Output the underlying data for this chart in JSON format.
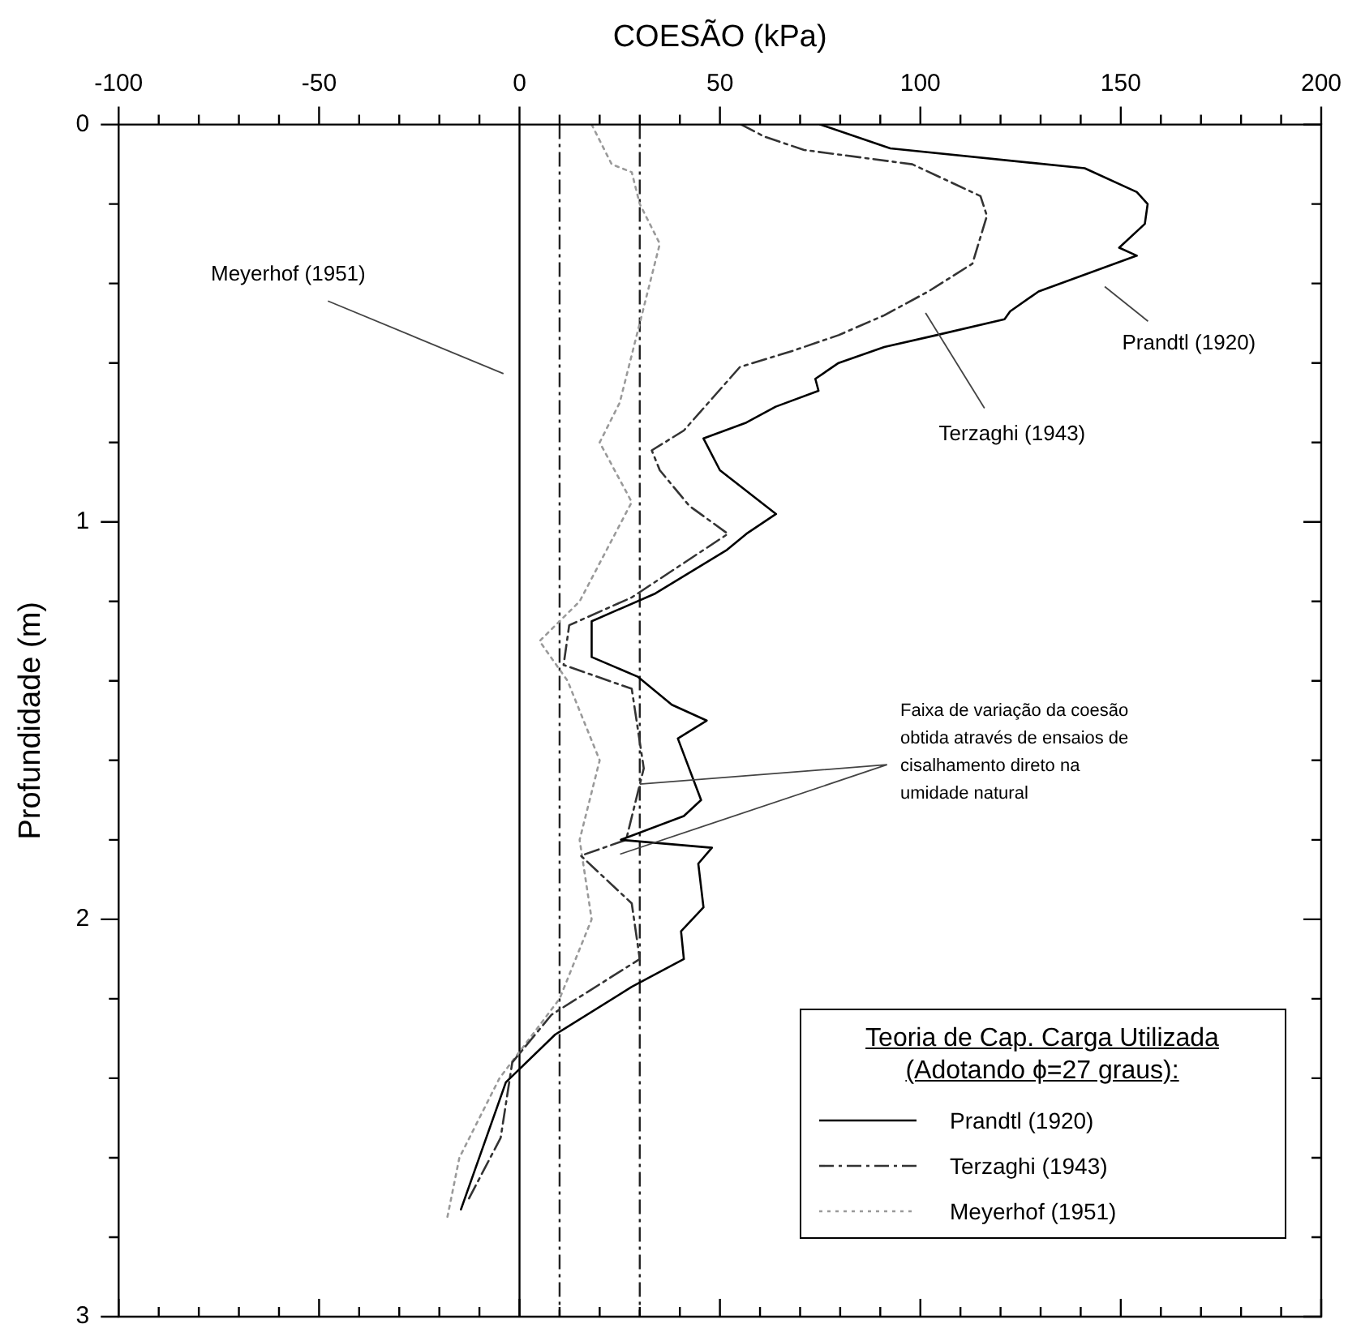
{
  "chart_data": {
    "type": "line",
    "xlabel": "COESÃO (kPa)",
    "ylabel": "Profundidade (m)",
    "legend_title": "Teoria de Cap. Carga Utilizada\n(Adotando ϕ=27 graus):",
    "xlim": [
      -100,
      200
    ],
    "ylim": [
      3,
      0
    ],
    "xticks": [
      -100,
      {
        "value": -90,
        "label": null
      },
      {
        "value": -80,
        "label": null
      },
      {
        "value": -70,
        "label": null
      },
      {
        "value": -60,
        "label": null
      },
      -50,
      {
        "value": -40,
        "label": null
      },
      {
        "value": -30,
        "label": null
      },
      {
        "value": -20,
        "label": null
      },
      {
        "value": -10,
        "label": null
      },
      0,
      {
        "value": 10,
        "label": null
      },
      {
        "value": 20,
        "label": null
      },
      {
        "value": 30,
        "label": null
      },
      {
        "value": 40,
        "label": null
      },
      50,
      {
        "value": 60,
        "label": null
      },
      {
        "value": 70,
        "label": null
      },
      {
        "value": 80,
        "label": null
      },
      {
        "value": 90,
        "label": null
      },
      100,
      {
        "value": 110,
        "label": null
      },
      {
        "value": 120,
        "label": null
      },
      {
        "value": 130,
        "label": null
      },
      {
        "value": 140,
        "label": null
      },
      150,
      {
        "value": 160,
        "label": null
      },
      {
        "value": 170,
        "label": null
      },
      {
        "value": 180,
        "label": null
      },
      {
        "value": 190,
        "label": null
      },
      200
    ],
    "yticks": [
      0,
      {
        "value": 0.2,
        "label": null
      },
      {
        "value": 0.4,
        "label": null
      },
      {
        "value": 0.6,
        "label": null
      },
      {
        "value": 0.8,
        "label": null
      },
      1,
      {
        "value": 1.2,
        "label": null
      },
      {
        "value": 1.4,
        "label": null
      },
      {
        "value": 1.6,
        "label": null
      },
      {
        "value": 1.8,
        "label": null
      },
      2,
      {
        "value": 2.2,
        "label": null
      },
      {
        "value": 2.4,
        "label": null
      },
      {
        "value": 2.6,
        "label": null
      },
      {
        "value": 2.8,
        "label": null
      },
      3
    ],
    "grid": false,
    "legend": "bottom right",
    "marker": "none",
    "series": [
      {
        "name": "Prandtl (1920)",
        "color": "#000000",
        "line_style": "solid",
        "x": [
          75,
          92.5,
          141,
          154,
          156.7,
          156,
          149.6,
          154,
          129.5,
          122.4,
          121,
          104,
          91,
          79.6,
          73.8,
          74.6,
          63.9,
          56.6,
          45.9,
          50,
          64,
          56.6,
          51.8,
          33.9,
          18,
          18,
          29.6,
          38,
          46.7,
          39.5,
          45.3,
          41,
          25.3,
          48,
          44.6,
          45.9,
          40.3,
          41,
          28,
          8.9,
          -3.4,
          -14.6
        ],
        "values": [
          0,
          0.06,
          0.11,
          0.17,
          0.2,
          0.25,
          0.31,
          0.33,
          0.42,
          0.47,
          0.49,
          0.53,
          0.56,
          0.6,
          0.64,
          0.67,
          0.71,
          0.75,
          0.79,
          0.87,
          0.98,
          1.03,
          1.07,
          1.18,
          1.25,
          1.34,
          1.39,
          1.46,
          1.5,
          1.545,
          1.7,
          1.74,
          1.8,
          1.82,
          1.86,
          1.97,
          2.03,
          2.1,
          2.17,
          2.29,
          2.41,
          2.73
        ]
      },
      {
        "name": "Terzaghi (1943)",
        "color": "#333333",
        "line_style": "dashed",
        "x": [
          55.3,
          61,
          71,
          98,
          115,
          116.6,
          113,
          102,
          91,
          79.6,
          68,
          55,
          41,
          33,
          35,
          42.4,
          52,
          28,
          12.4,
          11,
          28,
          31,
          26.6,
          15.3,
          28,
          30,
          8,
          -1.8,
          -4.7,
          -13
        ],
        "values": [
          0,
          0.03,
          0.064,
          0.1,
          0.18,
          0.23,
          0.35,
          0.42,
          0.48,
          0.53,
          0.57,
          0.61,
          0.77,
          0.82,
          0.87,
          0.96,
          1.03,
          1.19,
          1.26,
          1.36,
          1.42,
          1.62,
          1.8,
          1.84,
          1.96,
          2.1,
          2.24,
          2.36,
          2.55,
          2.71
        ]
      },
      {
        "name": "Meyerhof (1951)",
        "color": "#9a9a9a",
        "line_style": "dotted",
        "x": [
          18,
          23,
          28,
          30,
          35,
          30,
          25,
          20,
          28,
          15,
          5,
          12,
          20,
          15,
          18,
          10,
          -5,
          -15,
          -18
        ],
        "values": [
          0,
          0.1,
          0.12,
          0.2,
          0.3,
          0.5,
          0.7,
          0.8,
          0.95,
          1.2,
          1.3,
          1.4,
          1.6,
          1.8,
          2.0,
          2.2,
          2.4,
          2.6,
          2.75
        ]
      }
    ],
    "ref_lines": [
      {
        "axis": "x",
        "value": 0,
        "line_style": "solid",
        "color": "#000000"
      },
      {
        "axis": "x",
        "value": 10,
        "line_style": "dashed",
        "color": "#222222"
      },
      {
        "axis": "x",
        "value": 30,
        "line_style": "dashed",
        "color": "#222222"
      }
    ],
    "annotations": [
      "Meyerhof (1951)",
      "Prandtl (1920)",
      "Terzaghi (1943)",
      {
        "text": "Faixa de variação da coesão\nobtida através de ensaios de\ncisalhamento direto na\numidade natural",
        "x": 30,
        "y": 1.66
      }
    ]
  }
}
